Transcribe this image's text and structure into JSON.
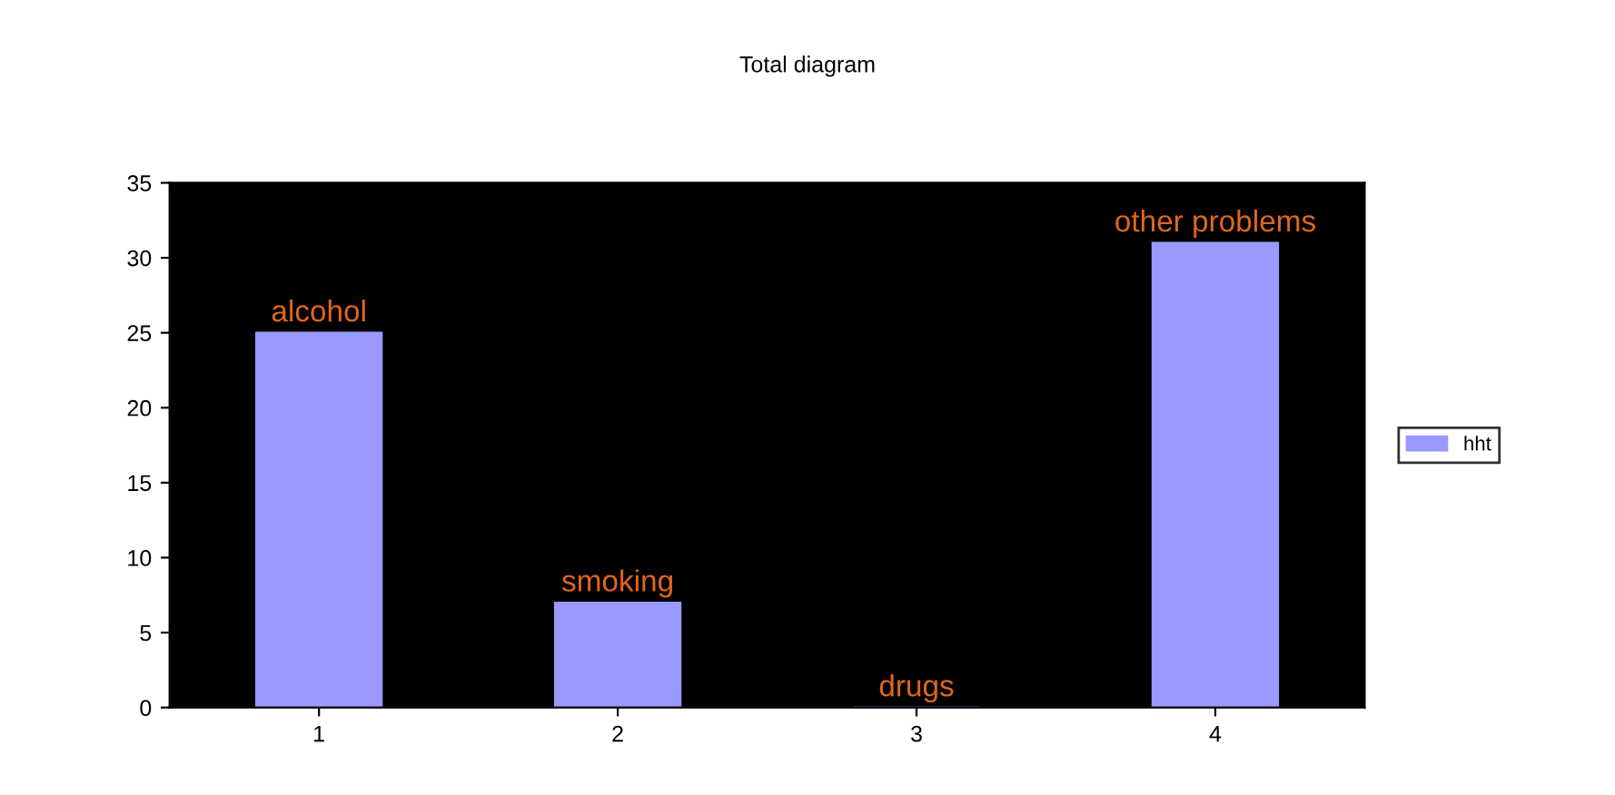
{
  "chart_data": {
    "type": "bar",
    "title": "Total diagram",
    "categories": [
      "1",
      "2",
      "3",
      "4"
    ],
    "series": [
      {
        "name": "hht",
        "color": "#9999ff",
        "values": [
          25,
          7,
          0,
          31
        ]
      }
    ],
    "ylim": [
      0,
      35
    ],
    "yticks": [
      0,
      5,
      10,
      15,
      20,
      25,
      30,
      35
    ],
    "grid": false,
    "legend": "right",
    "annotations": [
      {
        "text": "alcohol",
        "x": "1",
        "y": 25
      },
      {
        "text": "smoking",
        "x": "2",
        "y": 7
      },
      {
        "text": "drugs",
        "x": "3",
        "y": 0
      },
      {
        "text": "other problems",
        "x": "4",
        "y": 31
      }
    ]
  }
}
